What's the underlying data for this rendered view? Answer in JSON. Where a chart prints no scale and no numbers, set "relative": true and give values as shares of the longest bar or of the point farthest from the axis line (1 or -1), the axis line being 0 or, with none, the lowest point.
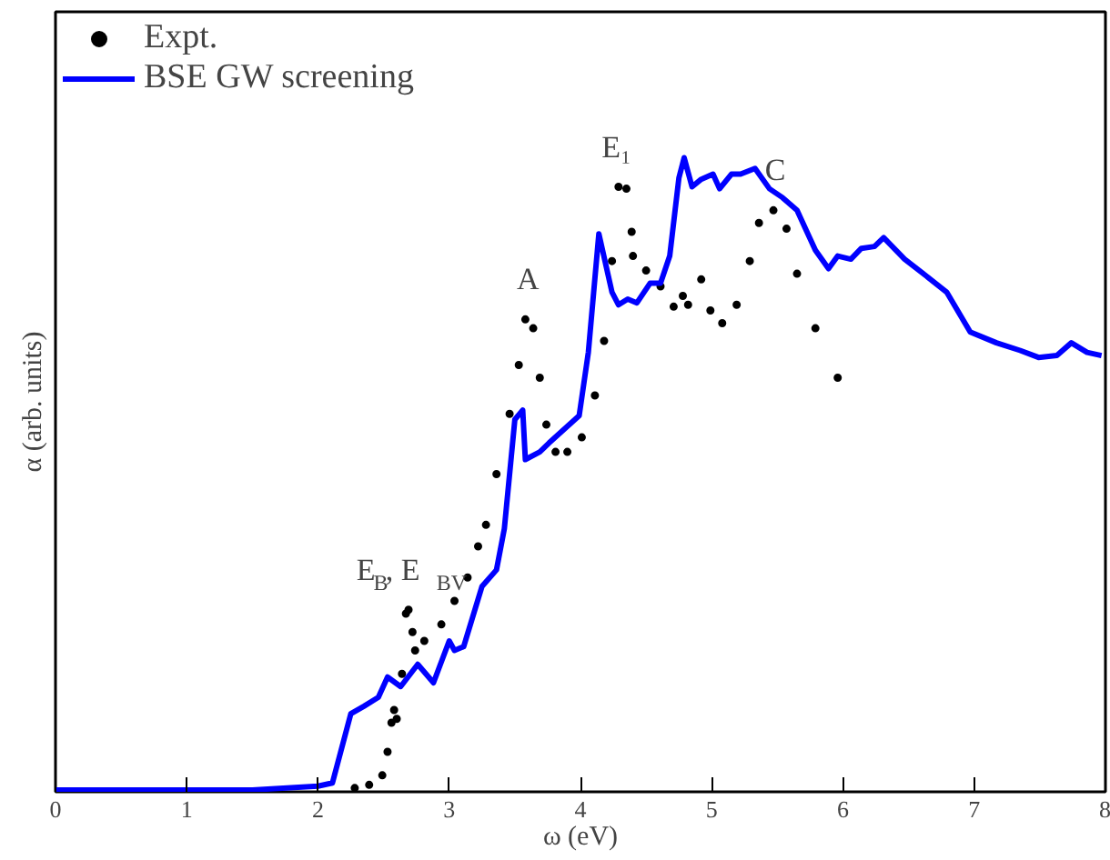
{
  "chart_data": {
    "type": "line",
    "relative": true,
    "xlabel": "ω (eV)",
    "ylabel": "α (arb. units)",
    "xlim": [
      0,
      8
    ],
    "xticks": [
      0,
      1,
      2,
      3,
      4,
      5,
      6,
      7,
      8
    ],
    "tick_labels": "x",
    "grid": false,
    "legend": "top left",
    "series": [
      {
        "name": "Expt.",
        "type": "scatter",
        "marker": "circle",
        "color": "#000000",
        "x": [
          2.28,
          2.39,
          2.49,
          2.53,
          2.56,
          2.58,
          2.6,
          2.64,
          2.67,
          2.69,
          2.72,
          2.74,
          2.81,
          2.94,
          3.04,
          3.14,
          3.22,
          3.28,
          3.36,
          3.46,
          3.53,
          3.58,
          3.64,
          3.69,
          3.74,
          3.81,
          3.9,
          4.01,
          4.11,
          4.18,
          4.24,
          4.29,
          4.35,
          4.39,
          4.4,
          4.5,
          4.61,
          4.71,
          4.78,
          4.82,
          4.92,
          4.99,
          5.08,
          5.19,
          5.29,
          5.36,
          5.47,
          5.57,
          5.65,
          5.79,
          5.96
        ],
        "values": [
          0.006,
          0.011,
          0.026,
          0.063,
          0.109,
          0.129,
          0.115,
          0.186,
          0.281,
          0.287,
          0.252,
          0.223,
          0.238,
          0.264,
          0.301,
          0.338,
          0.387,
          0.421,
          0.501,
          0.596,
          0.673,
          0.745,
          0.731,
          0.653,
          0.579,
          0.536,
          0.536,
          0.559,
          0.625,
          0.711,
          0.837,
          0.954,
          0.951,
          0.883,
          0.845,
          0.822,
          0.797,
          0.765,
          0.782,
          0.768,
          0.808,
          0.759,
          0.739,
          0.768,
          0.837,
          0.897,
          0.917,
          0.888,
          0.817,
          0.731,
          0.653
        ]
      },
      {
        "name": "BSE GW screening",
        "line_style": "solid",
        "color": "#0000ff",
        "x": [
          0,
          1.5,
          2.0,
          2.11,
          2.25,
          2.35,
          2.46,
          2.53,
          2.63,
          2.76,
          2.88,
          3.0,
          3.04,
          3.11,
          3.25,
          3.36,
          3.42,
          3.5,
          3.56,
          3.58,
          3.69,
          3.76,
          3.99,
          4.06,
          4.14,
          4.24,
          4.29,
          4.36,
          4.43,
          4.53,
          4.61,
          4.68,
          4.75,
          4.79,
          4.85,
          4.92,
          5.01,
          5.06,
          5.15,
          5.22,
          5.33,
          5.44,
          5.54,
          5.65,
          5.79,
          5.89,
          5.96,
          6.06,
          6.14,
          6.24,
          6.31,
          6.47,
          6.65,
          6.79,
          6.97,
          7.17,
          7.35,
          7.49,
          7.63,
          7.74,
          7.86,
          7.97
        ],
        "values": [
          0.003,
          0.003,
          0.009,
          0.014,
          0.123,
          0.135,
          0.149,
          0.181,
          0.166,
          0.201,
          0.172,
          0.238,
          0.223,
          0.229,
          0.324,
          0.35,
          0.415,
          0.587,
          0.602,
          0.524,
          0.536,
          0.55,
          0.593,
          0.693,
          0.88,
          0.788,
          0.768,
          0.777,
          0.771,
          0.802,
          0.802,
          0.845,
          0.968,
          1.0,
          0.954,
          0.966,
          0.974,
          0.951,
          0.974,
          0.974,
          0.983,
          0.951,
          0.937,
          0.917,
          0.854,
          0.825,
          0.845,
          0.84,
          0.857,
          0.86,
          0.874,
          0.84,
          0.811,
          0.788,
          0.725,
          0.708,
          0.696,
          0.685,
          0.688,
          0.708,
          0.693,
          0.688
        ]
      }
    ],
    "annotations": [
      {
        "text": "E$_{B}$, E$_{BV}$",
        "x": 2.69,
        "y": 0.287
      },
      {
        "text": "A",
        "x": 3.58,
        "y": 0.745
      },
      {
        "text": "E₁",
        "x": 4.29,
        "y": 0.954
      },
      {
        "text": "C",
        "x": 5.47,
        "y": 0.917
      }
    ]
  }
}
